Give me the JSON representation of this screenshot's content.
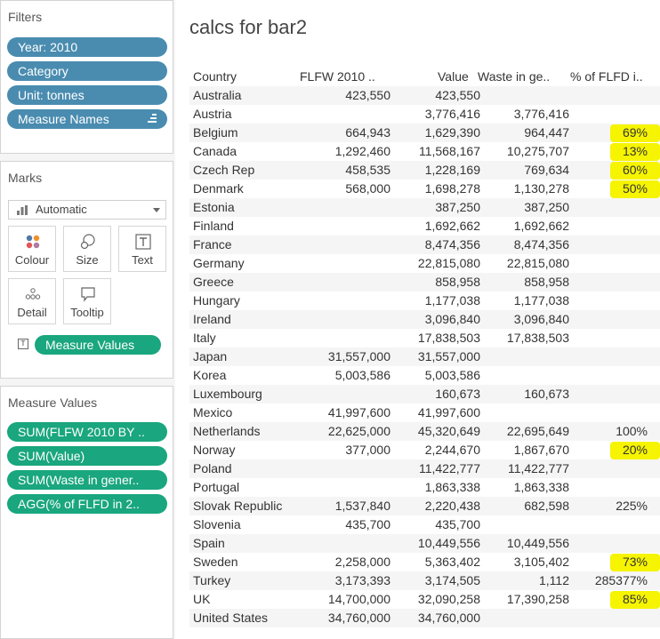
{
  "filters": {
    "title": "Filters",
    "items": [
      "Year: 2010",
      "Category",
      "Unit: tonnes",
      "Measure Names"
    ]
  },
  "marks": {
    "title": "Marks",
    "mark_type": "Automatic",
    "buttons": [
      "Colour",
      "Size",
      "Text",
      "Detail",
      "Tooltip"
    ],
    "text_field": "Measure Values"
  },
  "measure_values": {
    "title": "Measure Values",
    "items": [
      "SUM(FLFW 2010 BY ..",
      "SUM(Value)",
      "SUM(Waste in gener..",
      "AGG(% of FLFD in 2.."
    ]
  },
  "view": {
    "title": "calcs for bar2",
    "headers": [
      "Country",
      "FLFW 2010 ..",
      "Value",
      "Waste in ge..",
      "% of FLFD i.."
    ],
    "rows": [
      [
        "Australia",
        "423,550",
        "423,550",
        "",
        ""
      ],
      [
        "Austria",
        "",
        "3,776,416",
        "3,776,416",
        ""
      ],
      [
        "Belgium",
        "664,943",
        "1,629,390",
        "964,447",
        "69%"
      ],
      [
        "Canada",
        "1,292,460",
        "11,568,167",
        "10,275,707",
        "13%"
      ],
      [
        "Czech Rep",
        "458,535",
        "1,228,169",
        "769,634",
        "60%"
      ],
      [
        "Denmark",
        "568,000",
        "1,698,278",
        "1,130,278",
        "50%"
      ],
      [
        "Estonia",
        "",
        "387,250",
        "387,250",
        ""
      ],
      [
        "Finland",
        "",
        "1,692,662",
        "1,692,662",
        ""
      ],
      [
        "France",
        "",
        "8,474,356",
        "8,474,356",
        ""
      ],
      [
        "Germany",
        "",
        "22,815,080",
        "22,815,080",
        ""
      ],
      [
        "Greece",
        "",
        "858,958",
        "858,958",
        ""
      ],
      [
        "Hungary",
        "",
        "1,177,038",
        "1,177,038",
        ""
      ],
      [
        "Ireland",
        "",
        "3,096,840",
        "3,096,840",
        ""
      ],
      [
        "Italy",
        "",
        "17,838,503",
        "17,838,503",
        ""
      ],
      [
        "Japan",
        "31,557,000",
        "31,557,000",
        "",
        ""
      ],
      [
        "Korea",
        "5,003,586",
        "5,003,586",
        "",
        ""
      ],
      [
        "Luxembourg",
        "",
        "160,673",
        "160,673",
        ""
      ],
      [
        "Mexico",
        "41,997,600",
        "41,997,600",
        "",
        ""
      ],
      [
        "Netherlands",
        "22,625,000",
        "45,320,649",
        "22,695,649",
        "100%"
      ],
      [
        "Norway",
        "377,000",
        "2,244,670",
        "1,867,670",
        "20%"
      ],
      [
        "Poland",
        "",
        "11,422,777",
        "11,422,777",
        ""
      ],
      [
        "Portugal",
        "",
        "1,863,338",
        "1,863,338",
        ""
      ],
      [
        "Slovak Republic",
        "1,537,840",
        "2,220,438",
        "682,598",
        "225%"
      ],
      [
        "Slovenia",
        "435,700",
        "435,700",
        "",
        ""
      ],
      [
        "Spain",
        "",
        "10,449,556",
        "10,449,556",
        ""
      ],
      [
        "Sweden",
        "2,258,000",
        "5,363,402",
        "3,105,402",
        "73%"
      ],
      [
        "Turkey",
        "3,173,393",
        "3,174,505",
        "1,112",
        "285377%"
      ],
      [
        "UK",
        "14,700,000",
        "32,090,258",
        "17,390,258",
        "85%"
      ],
      [
        "United States",
        "34,760,000",
        "34,760,000",
        "",
        ""
      ]
    ],
    "highlighted_rows": [
      2,
      3,
      4,
      5,
      19,
      25,
      27
    ],
    "highlight_color": "#f6f400"
  }
}
